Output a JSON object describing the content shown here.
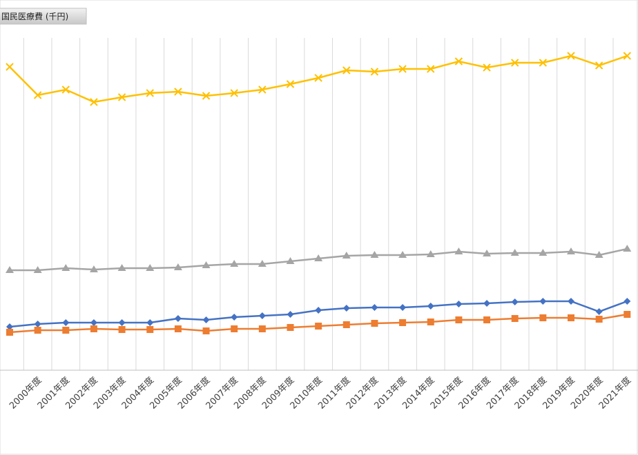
{
  "chart_data": {
    "type": "line",
    "title": "国民医療費 (千円)",
    "categories": [
      null,
      "2000年度",
      "2001年度",
      "2002年度",
      "2003年度",
      "2004年度",
      "2005年度",
      "2006年度",
      "2007年度",
      "2008年度",
      "2009年度",
      "2010年度",
      "2011年度",
      "2012年度",
      "2013年度",
      "2014年度",
      "2015年度",
      "2016年度",
      "2017年度",
      "2018年度",
      "2019年度",
      "2020年度",
      "2021年度"
    ],
    "ylim": [
      0,
      482
    ],
    "grid": true,
    "series": [
      {
        "color": "#ffc000",
        "marker": "x",
        "values": [
          440,
          399,
          407,
          389,
          396,
          402,
          404,
          398,
          402,
          407,
          415,
          424,
          435,
          433,
          437,
          437,
          448,
          439,
          446,
          446,
          456,
          442,
          456
        ]
      },
      {
        "color": "#a5a5a5",
        "marker": "triangle",
        "values": [
          145,
          145,
          148,
          146,
          148,
          148,
          149,
          152,
          154,
          154,
          158,
          162,
          166,
          167,
          167,
          168,
          172,
          169,
          170,
          170,
          172,
          167,
          176
        ]
      },
      {
        "color": "#4472c4",
        "marker": "diamond",
        "values": [
          63,
          67,
          69,
          69,
          69,
          69,
          75,
          73,
          77,
          79,
          81,
          87,
          90,
          91,
          91,
          93,
          96,
          97,
          99,
          100,
          100,
          85,
          100
        ]
      },
      {
        "color": "#ed7d31",
        "marker": "square",
        "values": [
          55,
          58,
          58,
          60,
          59,
          59,
          60,
          57,
          60,
          60,
          62,
          64,
          66,
          68,
          69,
          70,
          73,
          73,
          75,
          76,
          76,
          74,
          81
        ]
      }
    ]
  }
}
